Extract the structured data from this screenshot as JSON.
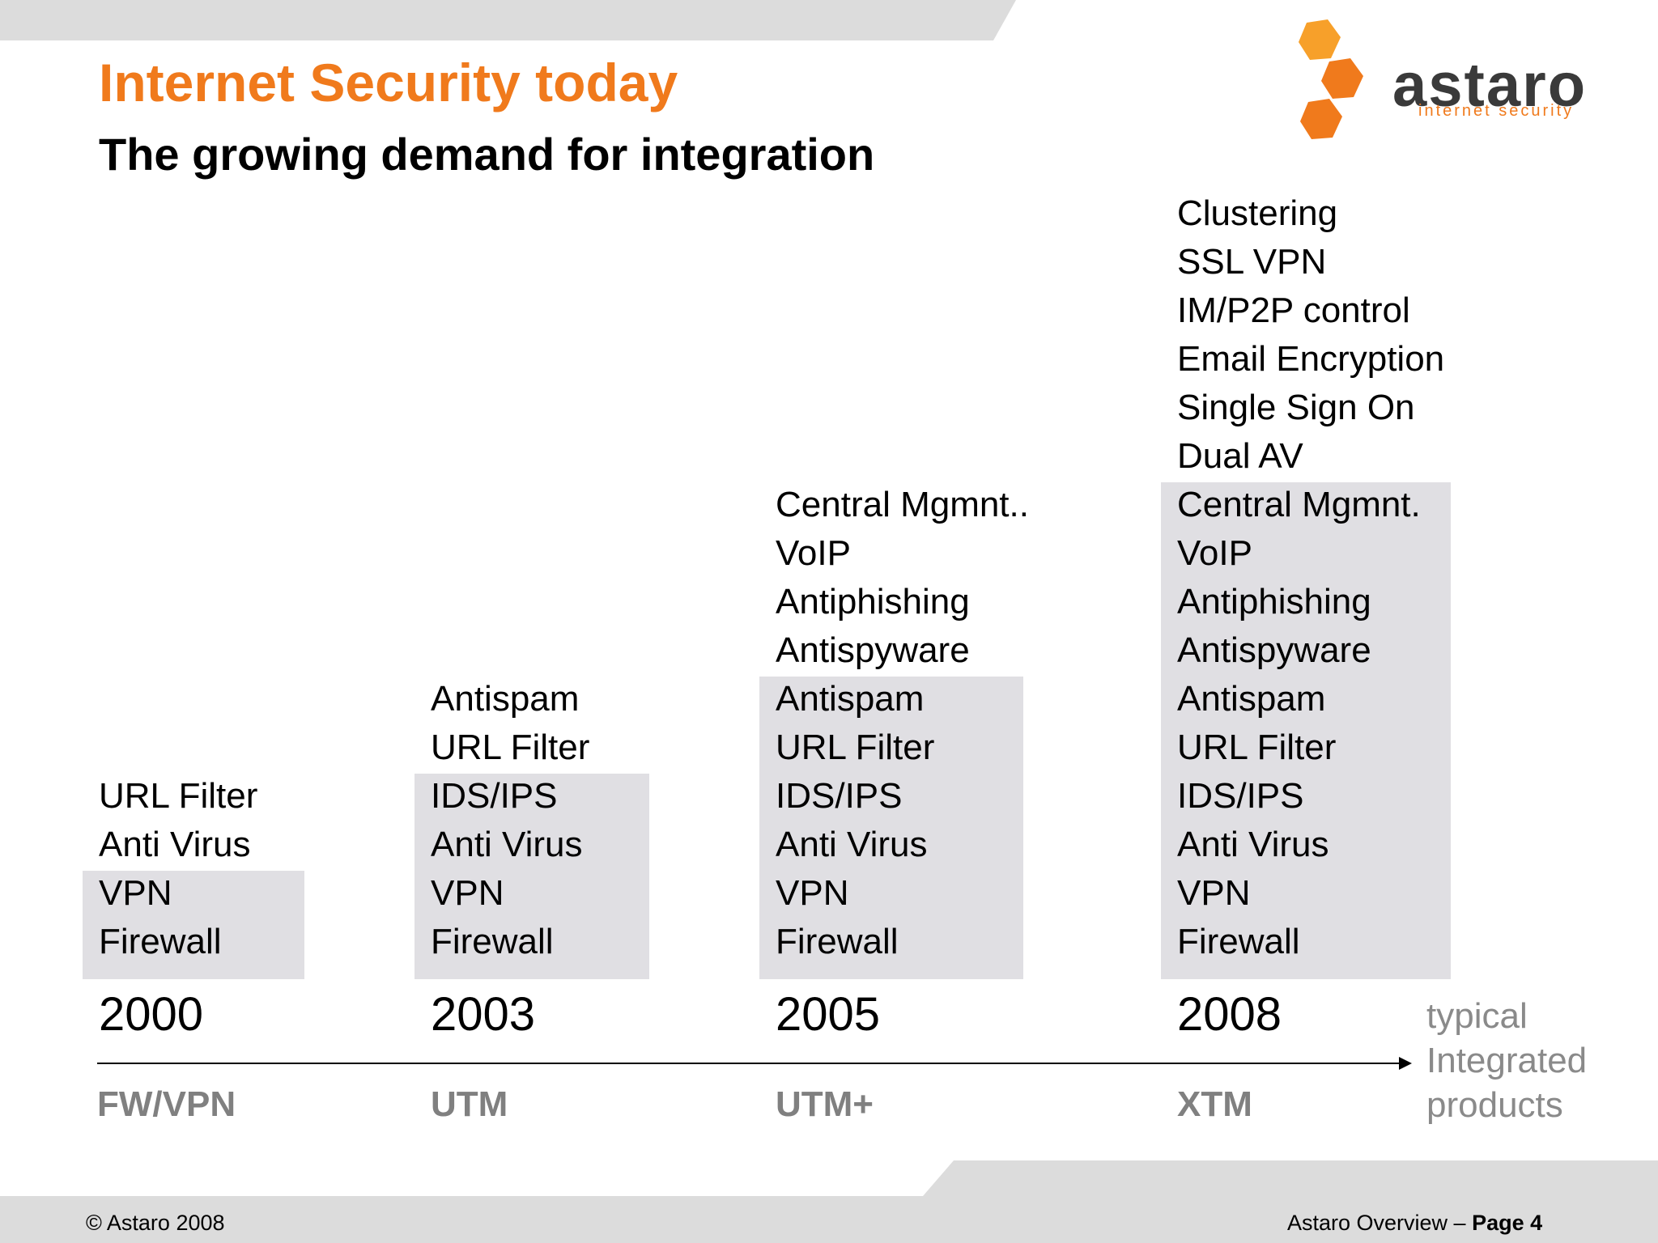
{
  "header": {
    "title": "Internet Security today",
    "subtitle": "The growing demand for integration"
  },
  "logo": {
    "wordmark": "astaro",
    "tagline": "internet security"
  },
  "timeline": {
    "columns": [
      {
        "year": "2000",
        "category": "FW/VPN",
        "items": [
          "URL Filter",
          "Anti Virus",
          "VPN",
          "Firewall"
        ]
      },
      {
        "year": "2003",
        "category": "UTM",
        "items": [
          "Antispam",
          "URL Filter",
          "IDS/IPS",
          "Anti Virus",
          "VPN",
          "Firewall"
        ]
      },
      {
        "year": "2005",
        "category": "UTM+",
        "items": [
          "Central Mgmnt..",
          "VoIP",
          "Antiphishing",
          "Antispyware",
          "Antispam",
          "URL Filter",
          "IDS/IPS",
          "Anti Virus",
          "VPN",
          "Firewall"
        ]
      },
      {
        "year": "2008",
        "category": "XTM",
        "items": [
          "Clustering",
          "SSL VPN",
          "IM/P2P control",
          "Email Encryption",
          "Single Sign On",
          "Dual AV",
          "Central Mgmnt.",
          "VoIP",
          "Antiphishing",
          "Antispyware",
          "Antispam",
          "URL Filter",
          "IDS/IPS",
          "Anti Virus",
          "VPN",
          "Firewall"
        ]
      }
    ],
    "axis_label": [
      "typical",
      "Integrated",
      "products"
    ]
  },
  "footer": {
    "copyright": "© Astaro 2008",
    "section": "Astaro Overview –",
    "page": "Page 4"
  },
  "colors": {
    "accent": "#f07a1c",
    "band": "#dcdcdc",
    "shade": "#e0dfe3",
    "category": "#808080"
  }
}
